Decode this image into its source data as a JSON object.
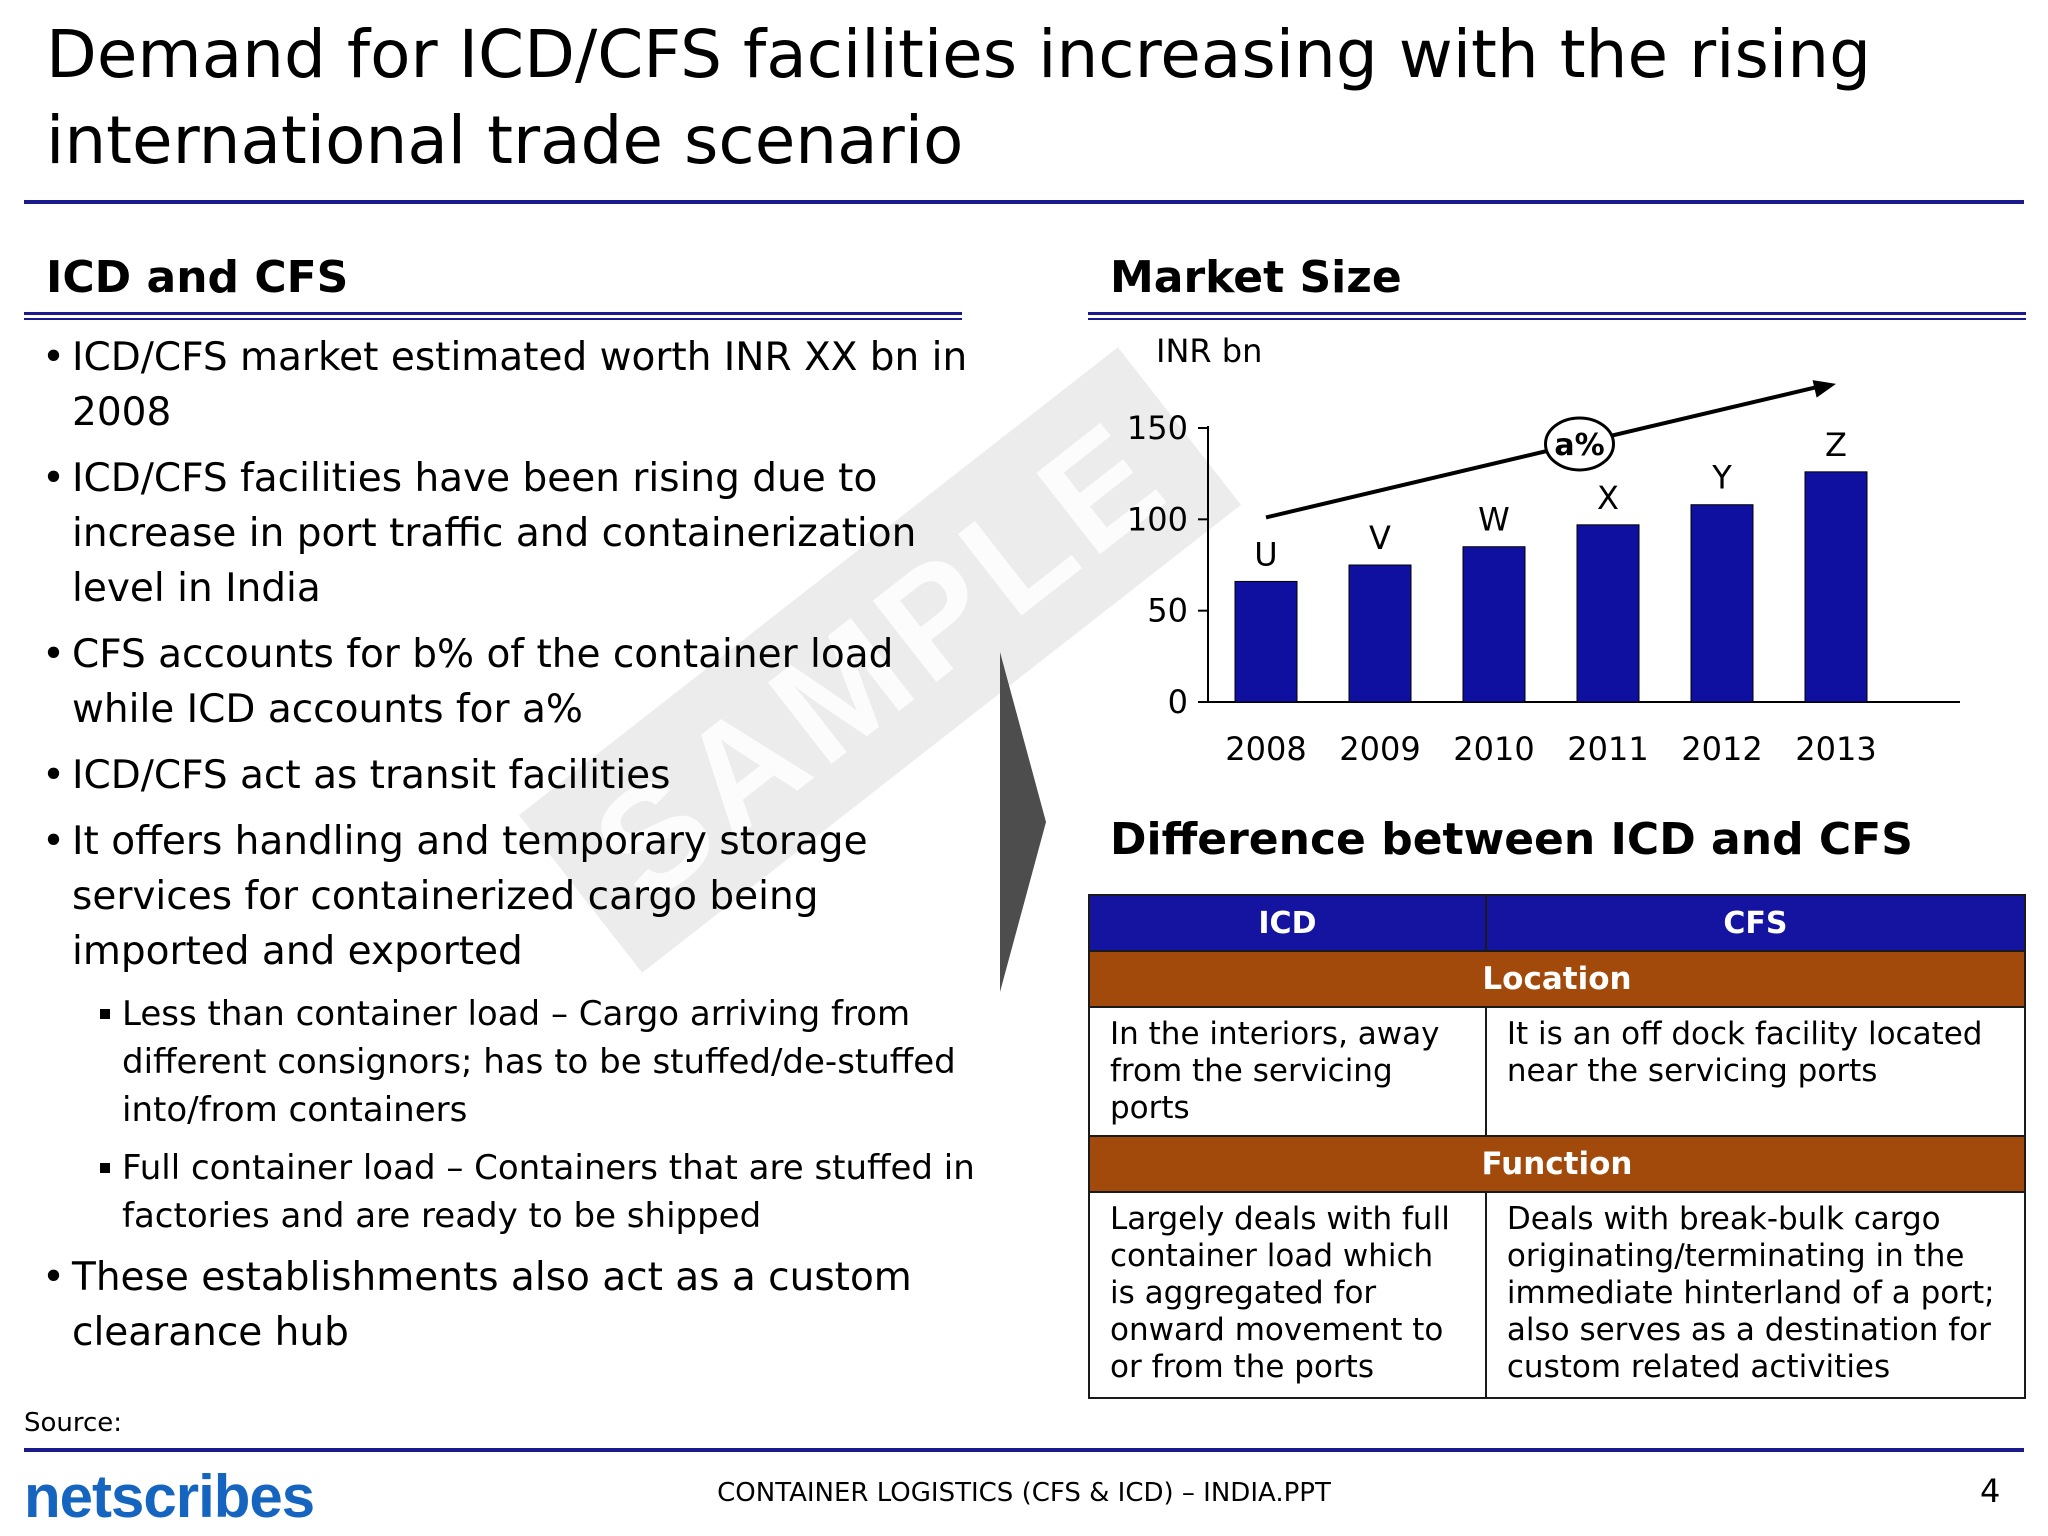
{
  "title": "Demand for ICD/CFS facilities increasing with the rising international trade scenario",
  "left_section": {
    "heading": "ICD and CFS",
    "bullets": [
      "ICD/CFS market estimated worth INR XX bn in 2008",
      "ICD/CFS facilities have been rising due to increase in port traffic and containerization level in India",
      "CFS accounts for b% of the container load while ICD accounts for a%",
      "ICD/CFS act as transit facilities",
      "It offers handling and temporary storage services for containerized cargo being imported and exported"
    ],
    "sub_bullets": [
      "Less than container load – Cargo arriving from different consignors; has to be stuffed/de-stuffed into/from containers",
      "Full container load  – Containers that are stuffed in factories and are ready to be shipped"
    ],
    "last_bullet": "These establishments also act as a custom clearance hub",
    "bullet_glyph": "•"
  },
  "watermark": "SAMPLE",
  "market_size": {
    "heading": "Market Size"
  },
  "chart_data": {
    "type": "bar",
    "title": "Market Size",
    "ylabel": "INR bn",
    "xlabel": "",
    "categories": [
      "2008",
      "2009",
      "2010",
      "2011",
      "2012",
      "2013"
    ],
    "values": [
      66,
      75,
      85,
      97,
      108,
      126
    ],
    "data_labels": [
      "U",
      "V",
      "W",
      "X",
      "Y",
      "Z"
    ],
    "ylim": [
      0,
      150
    ],
    "yticks": [
      0,
      50,
      100,
      150
    ],
    "annotation": "a%",
    "bar_color": "#1010a0"
  },
  "difference": {
    "heading": "Difference between ICD and CFS",
    "col_headers": [
      "ICD",
      "CFS"
    ],
    "sections": [
      {
        "label": "Location",
        "icd": "In the interiors, away from the servicing ports",
        "cfs": "It is an off dock facility located near the servicing ports"
      },
      {
        "label": "Function",
        "icd": "Largely deals with full container load which is aggregated for onward movement to or from the ports",
        "cfs": "Deals with break-bulk cargo originating/terminating in the immediate hinterland of a port; also serves as a destination for custom related activities"
      }
    ]
  },
  "footer": {
    "source": "Source:",
    "logo": "netscribes",
    "doc_name": "CONTAINER LOGISTICS (CFS & ICD) – INDIA.PPT",
    "page": "4"
  }
}
